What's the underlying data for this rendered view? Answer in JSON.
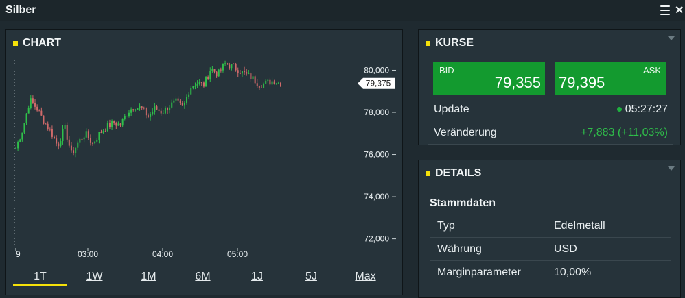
{
  "window": {
    "title": "Silber"
  },
  "chart_panel": {
    "heading": "CHART",
    "current_price_tag": "79,375",
    "y_ticks": [
      "80,000",
      "78,000",
      "76,000",
      "74,000",
      "72,000"
    ],
    "x_ticks": [
      "9",
      "03:00",
      "04:00",
      "05:00"
    ],
    "timeframes": [
      {
        "label": "1T",
        "active": true
      },
      {
        "label": "1W",
        "active": false
      },
      {
        "label": "1M",
        "active": false
      },
      {
        "label": "6M",
        "active": false
      },
      {
        "label": "1J",
        "active": false
      },
      {
        "label": "5J",
        "active": false
      },
      {
        "label": "Max",
        "active": false
      }
    ]
  },
  "chart_data": {
    "type": "candlestick",
    "ylim": [
      71500,
      80600
    ],
    "y_ticks": [
      80000,
      78000,
      76000,
      74000,
      72000
    ],
    "x_ticks": [
      "9",
      "03:00",
      "04:00",
      "05:00"
    ],
    "last_price": 79.375,
    "colors": {
      "up": "#2fbf4a",
      "down": "#d06a6a"
    },
    "ohlc_close_path": [
      76.3,
      77.2,
      78.6,
      78.2,
      77.6,
      77.1,
      76.4,
      77.3,
      76.0,
      76.6,
      77.0,
      76.5,
      77.0,
      77.3,
      77.5,
      77.4,
      78.0,
      78.3,
      78.2,
      77.8,
      78.2,
      78.0,
      78.3,
      78.5,
      78.2,
      79.2,
      79.4,
      79.3,
      80.1,
      79.8,
      80.3,
      80.2,
      80.0,
      79.8,
      79.6,
      79.3,
      79.4,
      79.5,
      79.375
    ]
  },
  "kurse_panel": {
    "heading": "KURSE",
    "bid_label": "BID",
    "bid_value": "79,355",
    "ask_label": "ASK",
    "ask_value": "79,395",
    "update_label": "Update",
    "update_time": "05:27:27",
    "change_label": "Veränderung",
    "change_value": "+7,883 (+11,03%)",
    "change_color": "#2fbf4a"
  },
  "details_panel": {
    "heading": "DETAILS",
    "subheading": "Stammdaten",
    "rows": [
      {
        "key": "Typ",
        "value": "Edelmetall"
      },
      {
        "key": "Währung",
        "value": "USD"
      },
      {
        "key": "Marginparameter",
        "value": "10,00%"
      }
    ]
  },
  "colors": {
    "accent": "#f5e10a",
    "quote_green": "#139a2f",
    "background": "#1f2a30"
  }
}
